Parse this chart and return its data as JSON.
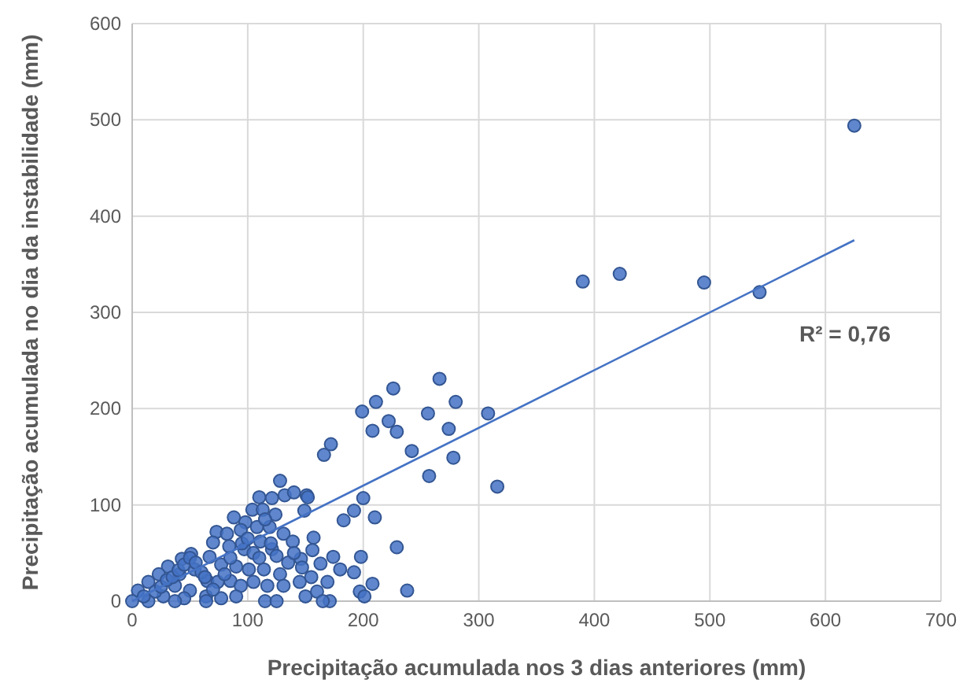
{
  "chart_data": {
    "type": "scatter",
    "xlabel": "Precipitação acumulada nos 3 dias anteriores (mm)",
    "ylabel": "Precipitação acumulada no dia da instabilidade (mm)",
    "xlim": [
      0,
      700
    ],
    "xticks": [
      0,
      100,
      200,
      300,
      400,
      500,
      600,
      700
    ],
    "ylim": [
      0,
      600
    ],
    "yticks": [
      0,
      100,
      200,
      300,
      400,
      500,
      600
    ],
    "grid": true,
    "annotations": [
      "R² = 0,76"
    ],
    "series": [
      {
        "marker": "circle",
        "color": "#4472c4",
        "x": [
          625,
          543,
          495,
          422,
          390,
          316,
          199,
          211,
          226,
          266,
          280,
          256,
          308,
          222,
          229,
          208,
          274,
          242,
          278,
          257,
          172,
          166,
          200,
          192,
          183,
          210,
          151,
          149,
          229,
          157,
          156,
          174,
          198,
          146,
          163,
          147,
          180,
          192,
          169,
          208,
          197,
          201,
          238,
          171,
          128,
          110,
          121,
          132,
          140,
          152,
          104,
          113,
          124,
          88,
          98,
          73,
          82,
          94,
          108,
          119,
          131,
          139,
          70,
          84,
          97,
          111,
          121,
          67,
          77,
          90,
          101,
          114,
          128,
          51,
          43,
          31,
          23,
          14,
          5,
          0,
          41,
          54,
          37,
          50,
          65,
          74,
          85,
          94,
          105,
          117,
          131,
          27,
          45,
          64,
          77,
          90,
          115,
          125,
          14,
          37,
          64,
          10,
          20,
          25,
          30,
          35,
          40,
          45,
          50,
          55,
          60,
          63,
          70,
          80,
          85,
          95,
          100,
          105,
          110,
          115,
          120,
          125,
          135,
          140,
          145,
          150,
          155,
          160,
          165
        ],
        "values": [
          494,
          321,
          331,
          340,
          332,
          119,
          197,
          207,
          221,
          231,
          207,
          195,
          195,
          187,
          176,
          177,
          179,
          156,
          149,
          130,
          163,
          152,
          107,
          94,
          84,
          87,
          110,
          94,
          56,
          66,
          53,
          46,
          46,
          44,
          39,
          35,
          33,
          30,
          20,
          18,
          10,
          5,
          11,
          0,
          125,
          108,
          107,
          110,
          113,
          108,
          95,
          95,
          90,
          87,
          82,
          72,
          70,
          74,
          77,
          77,
          70,
          62,
          61,
          57,
          54,
          62,
          54,
          46,
          38,
          36,
          33,
          33,
          28,
          49,
          44,
          36,
          28,
          20,
          11,
          0,
          28,
          33,
          16,
          11,
          21,
          20,
          21,
          16,
          20,
          16,
          16,
          5,
          3,
          5,
          3,
          5,
          0,
          0,
          0,
          0,
          0,
          5,
          10,
          15,
          22,
          25,
          32,
          38,
          45,
          40,
          30,
          25,
          12,
          28,
          45,
          60,
          65,
          50,
          45,
          85,
          60,
          47,
          40,
          50,
          20,
          5,
          25,
          10,
          0
        ]
      },
      {
        "type": "line",
        "color": "#4472c4",
        "x": [
          0,
          625
        ],
        "values": [
          0,
          375
        ]
      }
    ]
  }
}
